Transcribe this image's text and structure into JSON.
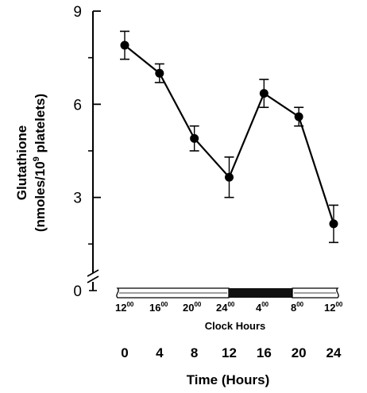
{
  "chart_data": {
    "type": "line",
    "xlabel": "Time (Hours)",
    "ylabel": "Glutathione",
    "ylabel_units": "(nmoles/10",
    "ylabel_units_exp": "9",
    "ylabel_units_tail": " platelets)",
    "ylim": [
      0,
      9
    ],
    "yticks": [
      0,
      3,
      6,
      9
    ],
    "yticks_minor": [
      1.5,
      4.5,
      7.5
    ],
    "xticks": [
      0,
      4,
      8,
      12,
      16,
      20,
      24
    ],
    "x": [
      0,
      4,
      8,
      12,
      16,
      20,
      24
    ],
    "y": [
      7.9,
      7.0,
      4.9,
      3.65,
      6.35,
      5.6,
      2.15
    ],
    "error": [
      0.45,
      0.3,
      0.4,
      0.65,
      0.45,
      0.3,
      0.6
    ],
    "clock_label": "Clock Hours",
    "clock_hours": [
      {
        "hour": "12",
        "sup": "00"
      },
      {
        "hour": "16",
        "sup": "00"
      },
      {
        "hour": "20",
        "sup": "00"
      },
      {
        "hour": "24",
        "sup": "00"
      },
      {
        "hour": "4",
        "sup": "00"
      },
      {
        "hour": "8",
        "sup": "00"
      },
      {
        "hour": "12",
        "sup": "00"
      }
    ],
    "grid": false,
    "legend": "none"
  }
}
